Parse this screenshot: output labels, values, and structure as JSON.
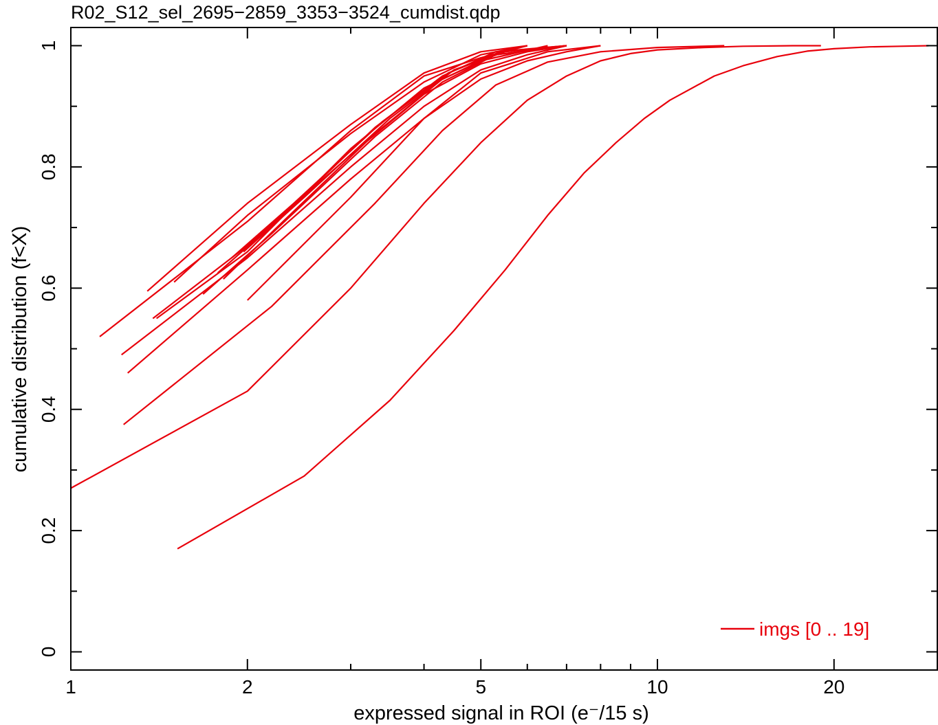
{
  "colors": {
    "series": "#e8000b",
    "axes": "#000000",
    "background": "#ffffff"
  },
  "chart_data": {
    "type": "line",
    "title": "R02_S12_sel_2695−2859_3353−3524_cumdist.qdp",
    "xlabel": "expressed signal in ROI (e⁻/15 s)",
    "ylabel": "cumulative distribution (f<X)",
    "xscale": "log",
    "xlim": [
      1,
      30
    ],
    "ylim": [
      -0.03,
      1.03
    ],
    "xticks": [
      {
        "value": 1,
        "label": "1"
      },
      {
        "value": 2,
        "label": "2"
      },
      {
        "value": 5,
        "label": "5"
      },
      {
        "value": 10,
        "label": "10"
      },
      {
        "value": 20,
        "label": "20"
      }
    ],
    "yticks": [
      {
        "value": 0,
        "label": "0"
      },
      {
        "value": 0.2,
        "label": "0.2"
      },
      {
        "value": 0.4,
        "label": "0.4"
      },
      {
        "value": 0.6,
        "label": "0.6"
      },
      {
        "value": 0.8,
        "label": "0.8"
      },
      {
        "value": 1,
        "label": "1"
      }
    ],
    "legend": {
      "label": "imgs [0 .. 19]",
      "position": "bottom-right"
    },
    "grid": false,
    "series": [
      {
        "x": [
          1.52,
          2.5,
          3.5,
          4.5,
          5.5,
          6.5,
          7.5,
          8.5,
          9.5,
          10.5,
          12.5,
          14,
          16,
          18,
          20,
          23,
          26,
          29
        ],
        "y": [
          0.17,
          0.29,
          0.415,
          0.53,
          0.63,
          0.72,
          0.79,
          0.84,
          0.88,
          0.91,
          0.95,
          0.967,
          0.982,
          0.991,
          0.995,
          0.998,
          0.999,
          1.0
        ]
      },
      {
        "x": [
          1.0,
          2.0,
          3.0,
          4.0,
          5.0,
          6.0,
          7.0,
          8.0,
          9.0,
          10.0,
          12.0,
          14.0,
          17.0,
          19.0
        ],
        "y": [
          0.27,
          0.43,
          0.6,
          0.74,
          0.84,
          0.91,
          0.95,
          0.975,
          0.987,
          0.993,
          0.997,
          0.999,
          1.0,
          1.0
        ]
      },
      {
        "x": [
          1.23,
          2.2,
          3.3,
          4.3,
          5.3,
          6.5,
          8.0,
          10.0,
          13.0
        ],
        "y": [
          0.375,
          0.57,
          0.74,
          0.86,
          0.935,
          0.973,
          0.99,
          0.997,
          1.0
        ]
      },
      {
        "x": [
          1.25,
          2.0,
          3.0,
          4.0,
          5.0,
          6.0,
          7.0,
          8.0
        ],
        "y": [
          0.46,
          0.63,
          0.78,
          0.88,
          0.945,
          0.975,
          0.99,
          1.0
        ]
      },
      {
        "x": [
          1.22,
          2.0,
          3.0,
          4.0,
          5.0,
          6.0,
          7.0
        ],
        "y": [
          0.49,
          0.65,
          0.8,
          0.9,
          0.96,
          0.985,
          1.0
        ]
      },
      {
        "x": [
          1.38,
          2.0,
          3.0,
          4.0,
          5.0,
          6.0,
          7.0
        ],
        "y": [
          0.55,
          0.67,
          0.82,
          0.92,
          0.97,
          0.99,
          1.0
        ]
      },
      {
        "x": [
          1.12,
          2.0,
          3.0,
          4.0,
          5.0,
          6.0
        ],
        "y": [
          0.52,
          0.71,
          0.86,
          0.95,
          0.98,
          1.0
        ]
      },
      {
        "x": [
          1.35,
          2.0,
          3.0,
          4.0,
          5.0,
          6.0
        ],
        "y": [
          0.595,
          0.74,
          0.87,
          0.955,
          0.99,
          1.0
        ]
      },
      {
        "x": [
          1.5,
          2.0,
          3.0,
          4.0,
          5.0,
          6.0
        ],
        "y": [
          0.61,
          0.72,
          0.855,
          0.94,
          0.985,
          1.0
        ]
      },
      {
        "x": [
          1.68,
          2.2,
          3.3,
          4.3,
          5.3,
          7.0
        ],
        "y": [
          0.59,
          0.69,
          0.85,
          0.94,
          0.985,
          1.0
        ]
      },
      {
        "x": [
          1.78,
          2.3,
          3.3,
          4.3,
          5.3,
          7.0
        ],
        "y": [
          0.625,
          0.72,
          0.865,
          0.95,
          0.99,
          1.0
        ]
      },
      {
        "x": [
          1.88,
          2.4,
          3.4,
          4.4,
          5.4,
          7.0
        ],
        "y": [
          0.65,
          0.74,
          0.875,
          0.955,
          0.99,
          1.0
        ]
      },
      {
        "x": [
          1.82,
          2.3,
          3.3,
          4.3,
          5.3,
          7.0
        ],
        "y": [
          0.615,
          0.71,
          0.855,
          0.945,
          0.985,
          1.0
        ]
      },
      {
        "x": [
          1.97,
          2.5,
          3.5,
          4.5,
          5.5,
          7.0
        ],
        "y": [
          0.66,
          0.75,
          0.88,
          0.96,
          0.99,
          1.0
        ]
      },
      {
        "x": [
          2.0,
          3.0,
          4.0,
          5.0,
          6.5,
          8.0
        ],
        "y": [
          0.58,
          0.75,
          0.88,
          0.955,
          0.99,
          1.0
        ]
      },
      {
        "x": [
          1.4,
          2.0,
          3.0,
          4.0,
          5.0,
          6.5
        ],
        "y": [
          0.55,
          0.66,
          0.83,
          0.93,
          0.975,
          1.0
        ]
      }
    ]
  }
}
